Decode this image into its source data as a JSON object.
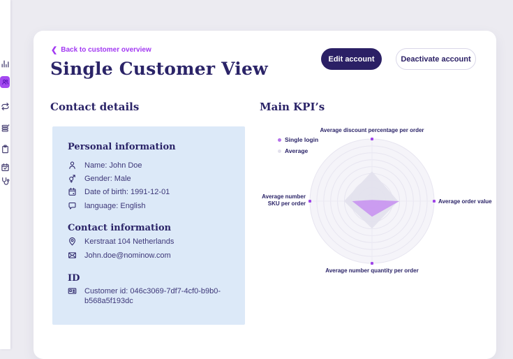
{
  "colors": {
    "page_bg": "#ecebf1",
    "card_bg": "#ffffff",
    "heading_indigo": "#2b2468",
    "body_text": "#3d3778",
    "accent_purple_link": "#a238f2",
    "sidebar_active_bg": "#a44af0",
    "primary_button_bg": "#2b2065",
    "panel_blue_bg": "#dce9f8"
  },
  "sidebar": {
    "items": [
      {
        "icon": "bar-chart-icon",
        "active": false
      },
      {
        "icon": "customers-icon",
        "active": true
      },
      {
        "icon": "repeat-icon",
        "active": false
      },
      {
        "icon": "list-icon",
        "active": false
      },
      {
        "icon": "clipboard-icon",
        "active": false
      },
      {
        "icon": "calendar-check-icon",
        "active": false
      },
      {
        "icon": "stethoscope-icon",
        "active": false
      }
    ]
  },
  "header": {
    "back_link": "Back to customer overview",
    "title": "Single Customer View",
    "edit_button": "Edit account",
    "deactivate_button": "Deactivate account"
  },
  "contact": {
    "section_title": "Contact details",
    "personal": {
      "title": "Personal information",
      "rows": [
        {
          "icon": "user-icon",
          "text": "Name: John Doe"
        },
        {
          "icon": "gender-icon",
          "text": "Gender: Male"
        },
        {
          "icon": "calendar-icon",
          "text": "Date of birth: 1991-12-01"
        },
        {
          "icon": "chat-bubble-icon",
          "text": "language: English"
        }
      ]
    },
    "contact_info": {
      "title": "Contact information",
      "rows": [
        {
          "icon": "location-pin-icon",
          "text": "Kerstraat 104 Netherlands"
        },
        {
          "icon": "envelope-icon",
          "text": "John.doe@nominow.com"
        }
      ]
    },
    "id_section": {
      "title": "ID",
      "rows": [
        {
          "icon": "id-card-icon",
          "text": "Customer id: 046c3069-7df7-4cf0-b9b0-b568a5f193dc"
        }
      ]
    }
  },
  "kpi": {
    "section_title": "Main KPI’s",
    "legend": [
      {
        "label": "Single login",
        "color": "#b672ea"
      },
      {
        "label": "Average",
        "color": "#e2e0ec"
      }
    ]
  },
  "chart_data": {
    "type": "radar",
    "title": "Main KPI's",
    "axes": [
      "Average discount percentage per order",
      "Average order value",
      "Average number quantity per order",
      "Average number SKU per order"
    ],
    "max": 1,
    "rings": 9,
    "grid": true,
    "legend_position": "top-left",
    "series": [
      {
        "name": "Single login",
        "values": [
          0.02,
          0.44,
          0.25,
          0.32
        ],
        "fill": "#c893ef",
        "opacity": 0.9
      },
      {
        "name": "Average",
        "values": [
          0.48,
          0.42,
          0.44,
          0.45
        ],
        "fill": "#e3e1ed",
        "opacity": 0.95
      }
    ],
    "marker_color": "#9f45e8",
    "ring_color": "#e7e5f0",
    "axis_line_color": "#eceaf4",
    "disc_color": "#f5f4f9"
  }
}
